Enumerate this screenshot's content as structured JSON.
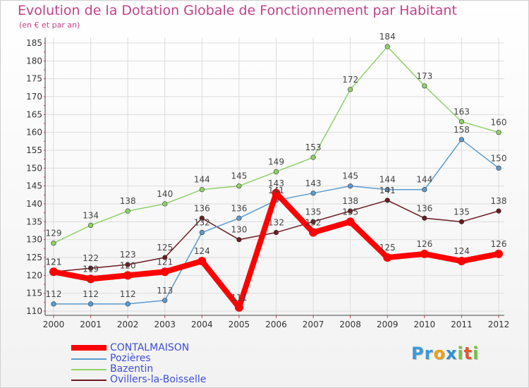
{
  "title": "Evolution de la Dotation Globale de Fonctionnement par Habitant",
  "subtitle": "(en € et par an)",
  "logo": {
    "text": "Proxiti",
    "letters": [
      {
        "ch": "P",
        "color": "#3a9ad9"
      },
      {
        "ch": "r",
        "color": "#3a9ad9"
      },
      {
        "ch": "o",
        "color": "#e8a21a"
      },
      {
        "ch": "x",
        "color": "#2f8fd2"
      },
      {
        "ch": "i",
        "color": "#79c043"
      },
      {
        "ch": "t",
        "color": "#e25a2a"
      },
      {
        "ch": "i",
        "color": "#79c043"
      }
    ]
  },
  "chart_data": {
    "type": "line",
    "x": [
      "2000",
      "2001",
      "2002",
      "2003",
      "2004",
      "2005",
      "2006",
      "2007",
      "2008",
      "2009",
      "2010",
      "2011",
      "2012"
    ],
    "ylim": [
      110,
      185
    ],
    "yticks": [
      "110",
      "115",
      "120",
      "125",
      "130",
      "135",
      "140",
      "145",
      "150",
      "155",
      "160",
      "165",
      "170",
      "175",
      "180",
      "185"
    ],
    "grid": true,
    "legend_position": "bottom-left",
    "series": [
      {
        "name": "Ovillers-la-Boisselle",
        "color": "#6b1b1f",
        "values": [
          121,
          122,
          123,
          125,
          136,
          130,
          132,
          135,
          138,
          141,
          136,
          135,
          138
        ]
      },
      {
        "name": "Bazentin",
        "color": "#8fd16a",
        "values": [
          129,
          134,
          138,
          140,
          144,
          145,
          149,
          153,
          172,
          184,
          173,
          163,
          160
        ]
      },
      {
        "name": "Pozières",
        "color": "#5b9bd0",
        "values": [
          112,
          112,
          112,
          113,
          132,
          136,
          141,
          143,
          145,
          144,
          144,
          158,
          150
        ]
      },
      {
        "name": "CONTALMAISON",
        "color": "#ff0000",
        "values": [
          121,
          119,
          120,
          121,
          124,
          111,
          143,
          132,
          135,
          125,
          126,
          124,
          126
        ]
      }
    ]
  }
}
